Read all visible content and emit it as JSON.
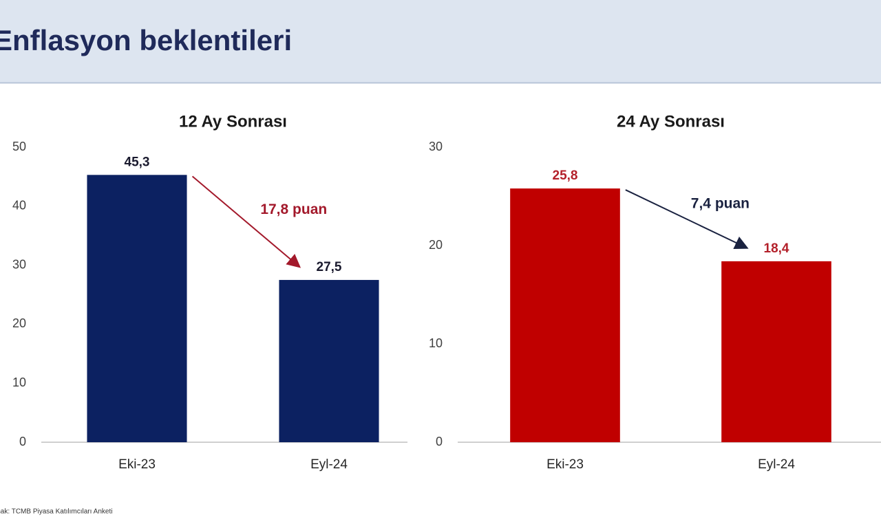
{
  "header": {
    "title": "Enflasyon beklentileri"
  },
  "source": "Kaynak: TCMB Piyasa Katılımcıları Anketi",
  "chart_data": [
    {
      "type": "bar",
      "title": "12 Ay Sonrası",
      "categories": [
        "Eki-23",
        "Eyl-24"
      ],
      "values": [
        45.3,
        27.5
      ],
      "value_labels": [
        "45,3",
        "27,5"
      ],
      "color": "#0c2161",
      "label_color": "#1a1a2e",
      "annotation": "17,8 puan",
      "annotation_color": "#a3192b",
      "ylim": [
        0,
        50
      ],
      "yticks": [
        0,
        10,
        20,
        30,
        40,
        50
      ]
    },
    {
      "type": "bar",
      "title": "24 Ay Sonrası",
      "categories": [
        "Eki-23",
        "Eyl-24"
      ],
      "values": [
        25.8,
        18.4
      ],
      "value_labels": [
        "25,8",
        "18,4"
      ],
      "color": "#c00000",
      "label_color": "#b3202a",
      "annotation": "7,4 puan",
      "annotation_color": "#1a2240",
      "ylim": [
        0,
        30
      ],
      "yticks": [
        0,
        10,
        20,
        30
      ]
    }
  ]
}
